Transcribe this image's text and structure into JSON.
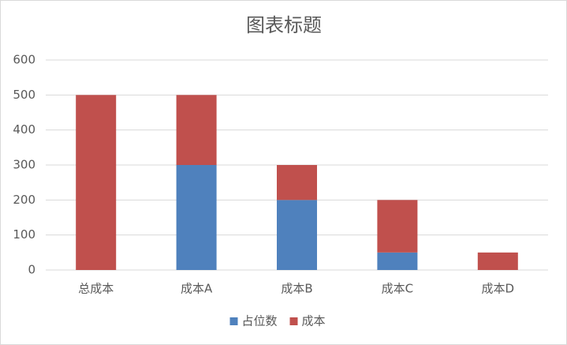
{
  "chart_data": {
    "type": "stacked_bar",
    "title": "图表标题",
    "categories": [
      "总成本",
      "成本A",
      "成本B",
      "成本C",
      "成本D"
    ],
    "series": [
      {
        "name": "占位数",
        "color": "#4f81bd",
        "values": [
          0,
          300,
          200,
          50,
          0
        ]
      },
      {
        "name": "成本",
        "color": "#c0504d",
        "values": [
          500,
          200,
          100,
          150,
          50
        ]
      }
    ],
    "ylim": [
      0,
      600
    ],
    "yticks": [
      0,
      100,
      200,
      300,
      400,
      500,
      600
    ],
    "grid": true,
    "legend": "bottom"
  }
}
